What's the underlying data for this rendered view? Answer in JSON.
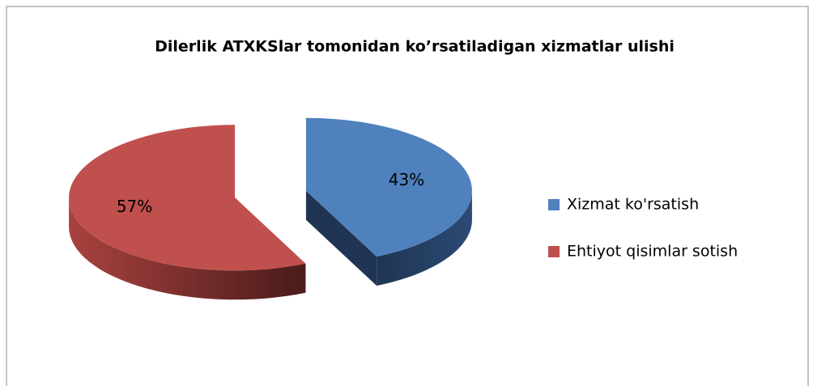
{
  "chart_data": {
    "type": "pie",
    "title": "Dilerlik ATXKSlar tomonidan ko’rsatiladigan xizmatlar ulishi",
    "categories": [
      "Xizmat ko'rsatish",
      "Ehtiyot qisimlar sotish"
    ],
    "values": [
      43,
      57
    ],
    "value_labels": [
      "43%",
      "57%"
    ],
    "colors": [
      "#4f81bd",
      "#c0504d"
    ],
    "legend": "right"
  }
}
